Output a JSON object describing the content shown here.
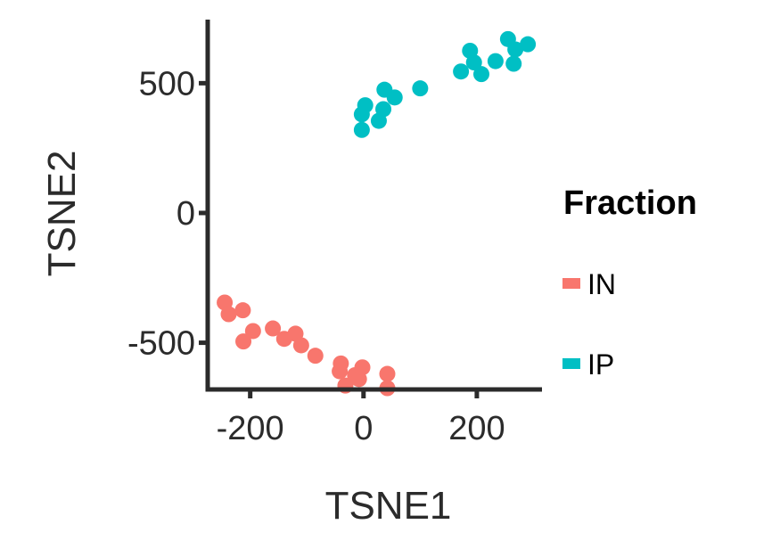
{
  "chart_data": {
    "type": "scatter",
    "xlabel": "TSNE1",
    "ylabel": "TSNE2",
    "xlim": [
      -275,
      315
    ],
    "ylim": [
      -680,
      745
    ],
    "xticks": [
      -200,
      0,
      200
    ],
    "yticks": [
      -500,
      0,
      500
    ],
    "grid": false,
    "legend": {
      "title": "Fraction",
      "placement": "right"
    },
    "series": [
      {
        "name": "IN",
        "color": "#F8766D",
        "points": [
          {
            "x": -245,
            "y": -345
          },
          {
            "x": -238,
            "y": -390
          },
          {
            "x": -213,
            "y": -375
          },
          {
            "x": -212,
            "y": -495
          },
          {
            "x": -195,
            "y": -455
          },
          {
            "x": -160,
            "y": -445
          },
          {
            "x": -140,
            "y": -485
          },
          {
            "x": -120,
            "y": -465
          },
          {
            "x": -110,
            "y": -510
          },
          {
            "x": -85,
            "y": -550
          },
          {
            "x": -40,
            "y": -580
          },
          {
            "x": -42,
            "y": -610
          },
          {
            "x": -32,
            "y": -665
          },
          {
            "x": -15,
            "y": -625
          },
          {
            "x": -8,
            "y": -640
          },
          {
            "x": -2,
            "y": -595
          },
          {
            "x": 42,
            "y": -620
          },
          {
            "x": 42,
            "y": -675
          }
        ]
      },
      {
        "name": "IP",
        "color": "#00BFC4",
        "points": [
          {
            "x": -3,
            "y": 320
          },
          {
            "x": -3,
            "y": 380
          },
          {
            "x": 3,
            "y": 415
          },
          {
            "x": 27,
            "y": 355
          },
          {
            "x": 35,
            "y": 400
          },
          {
            "x": 37,
            "y": 475
          },
          {
            "x": 55,
            "y": 445
          },
          {
            "x": 100,
            "y": 480
          },
          {
            "x": 172,
            "y": 545
          },
          {
            "x": 188,
            "y": 625
          },
          {
            "x": 195,
            "y": 580
          },
          {
            "x": 208,
            "y": 535
          },
          {
            "x": 233,
            "y": 585
          },
          {
            "x": 255,
            "y": 670
          },
          {
            "x": 265,
            "y": 575
          },
          {
            "x": 268,
            "y": 630
          },
          {
            "x": 290,
            "y": 650
          }
        ]
      }
    ]
  }
}
